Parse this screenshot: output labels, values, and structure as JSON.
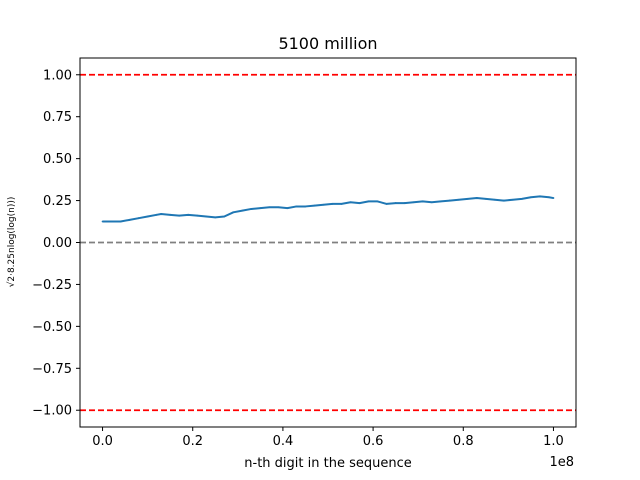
{
  "chart_data": {
    "type": "line",
    "title": "5100 million",
    "xlabel": "n-th digit in the sequence",
    "ylabel": "√2·8.25nlog(log(n)))",
    "x_offset_text": "1e8",
    "xlim": [
      -0.05,
      1.05
    ],
    "ylim": [
      -1.1,
      1.1
    ],
    "x_ticks": [
      0.0,
      0.2,
      0.4,
      0.6,
      0.8,
      1.0
    ],
    "x_tick_labels": [
      "0.0",
      "0.2",
      "0.4",
      "0.6",
      "0.8",
      "1.0"
    ],
    "y_ticks": [
      -1.0,
      -0.75,
      -0.5,
      -0.25,
      0.0,
      0.25,
      0.5,
      0.75,
      1.0
    ],
    "y_tick_labels": [
      "−1.00",
      "−0.75",
      "−0.50",
      "−0.25",
      "0.00",
      "0.25",
      "0.50",
      "0.75",
      "1.00"
    ],
    "grid": false,
    "series": [
      {
        "color": "#1f77b4",
        "x": [
          0.0,
          0.02,
          0.04,
          0.06,
          0.08,
          0.1,
          0.12,
          0.13,
          0.15,
          0.17,
          0.19,
          0.21,
          0.23,
          0.25,
          0.27,
          0.29,
          0.31,
          0.33,
          0.35,
          0.37,
          0.39,
          0.41,
          0.43,
          0.45,
          0.47,
          0.49,
          0.51,
          0.53,
          0.55,
          0.57,
          0.59,
          0.61,
          0.63,
          0.65,
          0.67,
          0.69,
          0.71,
          0.73,
          0.75,
          0.77,
          0.79,
          0.81,
          0.83,
          0.85,
          0.87,
          0.89,
          0.91,
          0.93,
          0.95,
          0.97,
          0.99,
          1.0
        ],
        "y": [
          0.125,
          0.125,
          0.125,
          0.135,
          0.145,
          0.155,
          0.165,
          0.17,
          0.165,
          0.16,
          0.165,
          0.16,
          0.155,
          0.15,
          0.155,
          0.18,
          0.19,
          0.2,
          0.205,
          0.21,
          0.21,
          0.205,
          0.215,
          0.215,
          0.22,
          0.225,
          0.23,
          0.23,
          0.24,
          0.235,
          0.245,
          0.245,
          0.23,
          0.235,
          0.235,
          0.24,
          0.245,
          0.24,
          0.245,
          0.25,
          0.255,
          0.26,
          0.265,
          0.26,
          0.255,
          0.25,
          0.255,
          0.26,
          0.27,
          0.275,
          0.27,
          0.265
        ]
      }
    ],
    "reference_lines": [
      {
        "y": 1.0,
        "color": "#ff0000",
        "style": "dashed"
      },
      {
        "y": -1.0,
        "color": "#ff0000",
        "style": "dashed"
      },
      {
        "y": 0.0,
        "color": "#808080",
        "style": "dashed"
      }
    ]
  }
}
